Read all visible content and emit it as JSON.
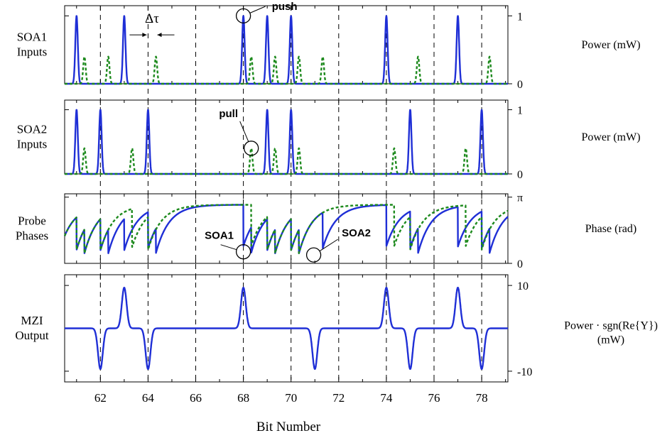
{
  "chart_data": {
    "type": "line",
    "xlabel": "Bit Number",
    "xlim": [
      60.5,
      79.1
    ],
    "xticks": [
      62,
      64,
      66,
      68,
      70,
      72,
      74,
      76,
      78
    ],
    "dashed_bit_lines": [
      62,
      64,
      66,
      68,
      70,
      72,
      74,
      76,
      78
    ],
    "panels": [
      {
        "id": "soa1",
        "left_label": [
          "SOA1",
          "Inputs"
        ],
        "right_label": "Power (mW)",
        "ylim": [
          0,
          1.15
        ],
        "ytick_labels": [
          {
            "v": 0,
            "t": "0"
          },
          {
            "v": 1,
            "t": "1"
          }
        ],
        "series": [
          {
            "style": "blue",
            "pulses": [
              {
                "x": 61,
                "h": 1
              },
              {
                "x": 63,
                "h": 1
              },
              {
                "x": 68,
                "h": 1
              },
              {
                "x": 69,
                "h": 1
              },
              {
                "x": 70,
                "h": 1
              },
              {
                "x": 74,
                "h": 1
              },
              {
                "x": 77,
                "h": 1
              }
            ]
          },
          {
            "style": "green",
            "pulses": [
              {
                "x": 61.33,
                "h": 0.4
              },
              {
                "x": 62.33,
                "h": 0.4
              },
              {
                "x": 64.33,
                "h": 0.4
              },
              {
                "x": 68.33,
                "h": 0.4
              },
              {
                "x": 69.33,
                "h": 0.4
              },
              {
                "x": 70.33,
                "h": 0.4
              },
              {
                "x": 71.33,
                "h": 0.4
              },
              {
                "x": 75.33,
                "h": 0.4
              },
              {
                "x": 78.33,
                "h": 0.4
              }
            ]
          }
        ],
        "annotations": [
          {
            "text": "push",
            "cx": 68,
            "cy": 1.0
          },
          {
            "text": "Δτ",
            "bracket": [
              64,
              64.33
            ],
            "ybracket": 0.72
          }
        ]
      },
      {
        "id": "soa2",
        "left_label": [
          "SOA2",
          "Inputs"
        ],
        "right_label": "Power (mW)",
        "ylim": [
          0,
          1.15
        ],
        "ytick_labels": [
          {
            "v": 0,
            "t": "0"
          },
          {
            "v": 1,
            "t": "1"
          }
        ],
        "series": [
          {
            "style": "blue",
            "pulses": [
              {
                "x": 61,
                "h": 1
              },
              {
                "x": 62,
                "h": 1
              },
              {
                "x": 64,
                "h": 1
              },
              {
                "x": 69,
                "h": 1
              },
              {
                "x": 70,
                "h": 1
              },
              {
                "x": 75,
                "h": 1
              },
              {
                "x": 78,
                "h": 1
              }
            ]
          },
          {
            "style": "green",
            "pulses": [
              {
                "x": 61.33,
                "h": 0.4
              },
              {
                "x": 63.33,
                "h": 0.4
              },
              {
                "x": 68.33,
                "h": 0.4
              },
              {
                "x": 69.33,
                "h": 0.4
              },
              {
                "x": 70.33,
                "h": 0.4
              },
              {
                "x": 74.33,
                "h": 0.4
              },
              {
                "x": 77.33,
                "h": 0.4
              }
            ]
          }
        ],
        "annotations": [
          {
            "text": "pull",
            "cx": 68.33,
            "cy": 0.4
          }
        ]
      },
      {
        "id": "phase",
        "left_label": [
          "Probe",
          "Phases"
        ],
        "right_label": "Phase (rad)",
        "ylim": [
          0,
          3.3
        ],
        "ytick_labels": [
          {
            "v": 0,
            "t": "0"
          },
          {
            "v": 3.1416,
            "t": "π"
          }
        ],
        "series": [
          {
            "style": "blue",
            "kicks": [
              61,
              61.33,
              62,
              62.33,
              63,
              64,
              64.33,
              68,
              68.33,
              69,
              69.33,
              70,
              70.33,
              71.33,
              74,
              75,
              75.33,
              77,
              78,
              78.33
            ]
          },
          {
            "style": "green",
            "kicks": [
              61,
              61.33,
              62,
              63.33,
              64,
              68.33,
              69,
              69.33,
              70,
              70.33,
              74.33,
              75,
              77.33,
              78
            ]
          }
        ],
        "annotations": [
          {
            "text": "SOA1",
            "cx": 68.0,
            "cy": 0.55
          },
          {
            "text": "SOA2",
            "cx": 70.95,
            "cy": 0.4
          }
        ]
      },
      {
        "id": "mzi",
        "left_label": [
          "MZI",
          "Output"
        ],
        "right_label": [
          "Power · sgn(Re{Y})",
          "(mW)"
        ],
        "ylim": [
          -12.5,
          12.5
        ],
        "ytick_labels": [
          {
            "v": 10,
            "t": "10"
          },
          {
            "v": -10,
            "t": "-10"
          }
        ],
        "series": [
          {
            "style": "blue",
            "pulses": [
              {
                "x": 62,
                "h": -9.5
              },
              {
                "x": 63,
                "h": 9.5
              },
              {
                "x": 64,
                "h": -9.5
              },
              {
                "x": 68,
                "h": 9.5
              },
              {
                "x": 71,
                "h": -9.5
              },
              {
                "x": 74,
                "h": 9.5
              },
              {
                "x": 75,
                "h": -9.5
              },
              {
                "x": 77,
                "h": 9.5
              },
              {
                "x": 78,
                "h": -9.5
              }
            ]
          }
        ]
      }
    ]
  }
}
